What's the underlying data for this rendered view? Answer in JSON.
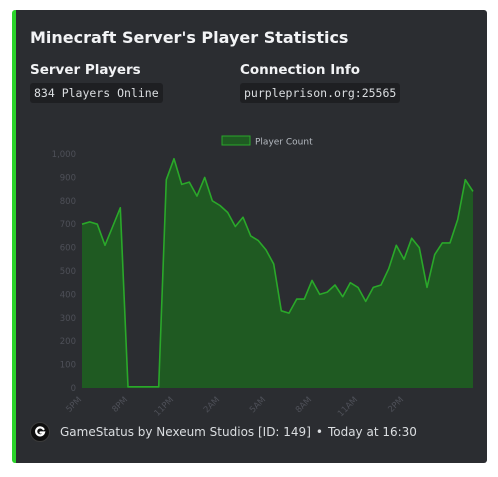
{
  "embed": {
    "title": "Minecraft Server's Player Statistics",
    "accent_color": "#2ad42a",
    "fields": [
      {
        "name": "Server Players",
        "value": "834 Players Online"
      },
      {
        "name": "Connection Info",
        "value": "purpleprison.org:25565"
      }
    ],
    "footer": {
      "icon": "gamestatus-logo-icon",
      "text": "GameStatus by Nexeum Studios [ID: 149]",
      "separator": "•",
      "timestamp": "Today at 16:30"
    }
  },
  "chart_data": {
    "type": "area",
    "legend": {
      "label": "Player Count",
      "position": "top"
    },
    "ylim": [
      0,
      1000
    ],
    "yticks": [
      "0",
      "100",
      "200",
      "300",
      "400",
      "500",
      "600",
      "700",
      "800",
      "900",
      "1,000"
    ],
    "xticks": [
      {
        "index": 0,
        "label": "5PM"
      },
      {
        "index": 6,
        "label": "8PM"
      },
      {
        "index": 12,
        "label": "11PM"
      },
      {
        "index": 18,
        "label": "2AM"
      },
      {
        "index": 24,
        "label": "5AM"
      },
      {
        "index": 30,
        "label": "8AM"
      },
      {
        "index": 36,
        "label": "11AM"
      },
      {
        "index": 42,
        "label": "2PM"
      }
    ],
    "series": [
      {
        "color": "#2aa82a",
        "fill": "#1f5a22",
        "values": [
          700,
          710,
          700,
          610,
          690,
          770,
          5,
          5,
          5,
          5,
          5,
          890,
          980,
          870,
          880,
          820,
          900,
          800,
          780,
          750,
          690,
          730,
          650,
          630,
          590,
          530,
          330,
          320,
          380,
          380,
          460,
          400,
          410,
          440,
          390,
          450,
          430,
          370,
          430,
          440,
          510,
          610,
          550,
          640,
          600,
          430,
          570,
          620,
          620,
          720,
          890,
          840
        ]
      }
    ]
  }
}
